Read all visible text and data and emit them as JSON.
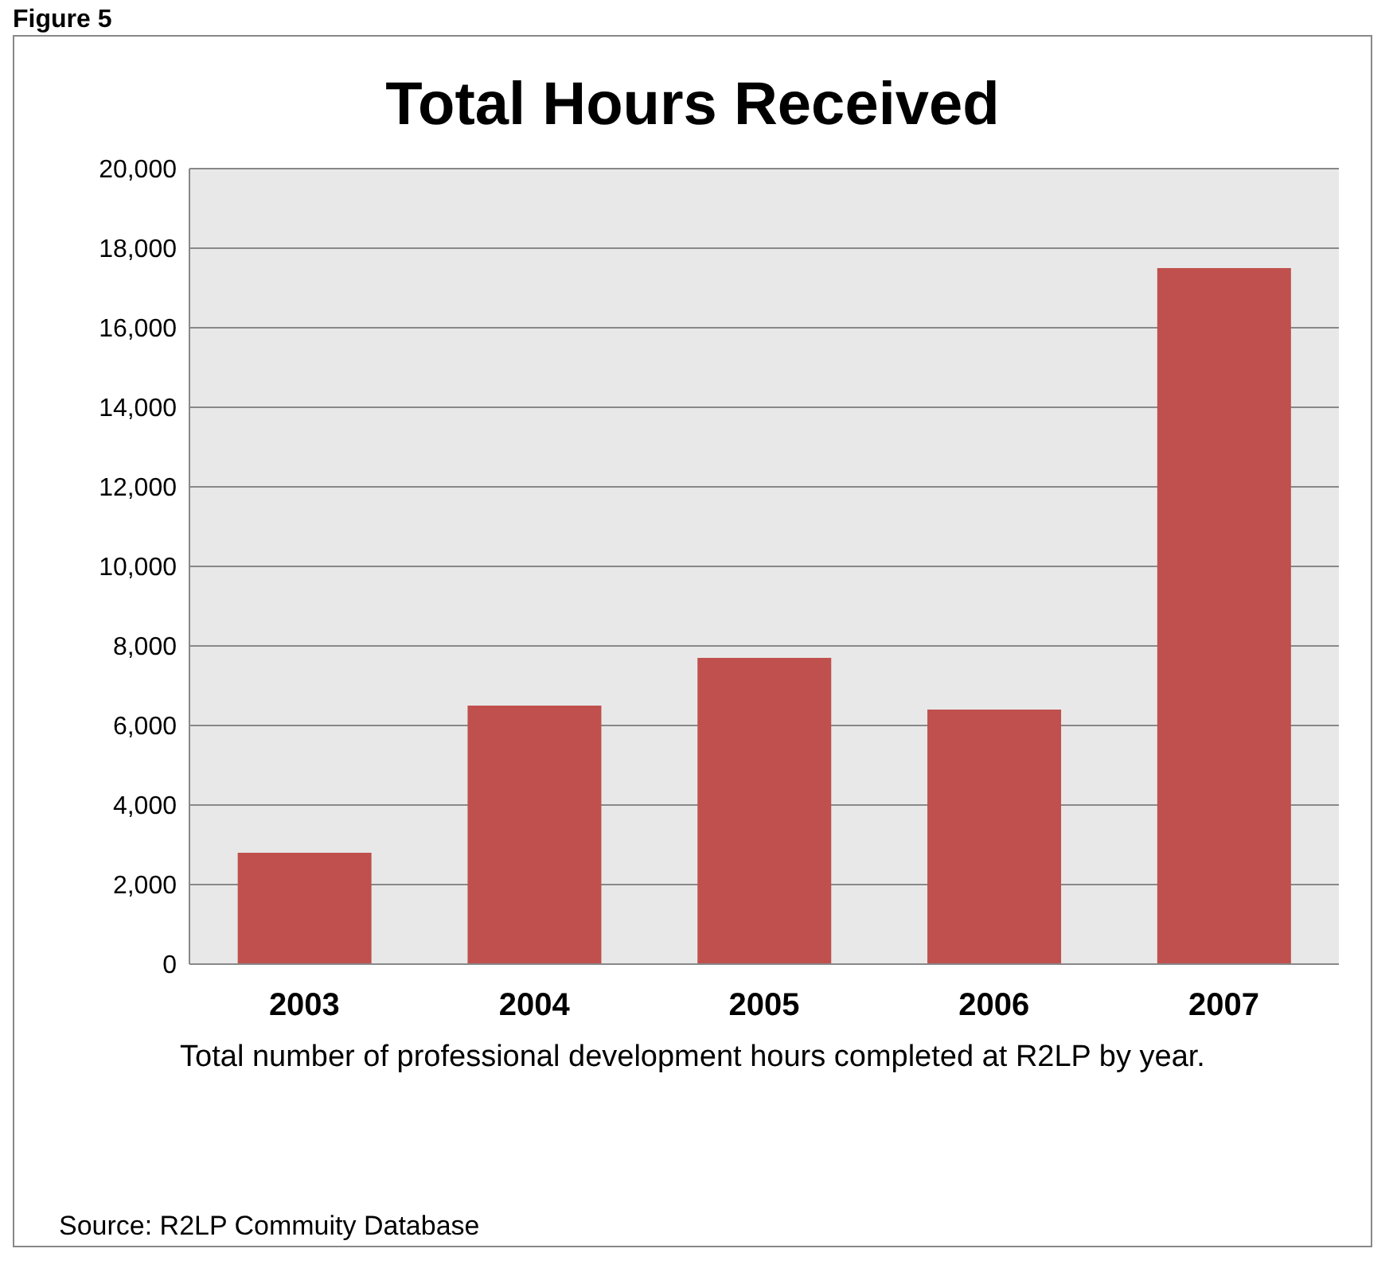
{
  "chart_data": {
    "type": "bar",
    "title": "Total Hours Received",
    "categories": [
      "2003",
      "2004",
      "2005",
      "2006",
      "2007"
    ],
    "values": [
      2800,
      6500,
      7700,
      6400,
      17500
    ],
    "color": "#c0504d",
    "ylim": [
      0,
      20000
    ],
    "yticks": [
      {
        "value": 0,
        "label": "0"
      },
      {
        "value": 2000,
        "label": "2,000"
      },
      {
        "value": 4000,
        "label": "4,000"
      },
      {
        "value": 6000,
        "label": "6,000"
      },
      {
        "value": 8000,
        "label": "8,000"
      },
      {
        "value": 10000,
        "label": "10,000"
      },
      {
        "value": 12000,
        "label": "12,000"
      },
      {
        "value": 14000,
        "label": "14,000"
      },
      {
        "value": 16000,
        "label": "16,000"
      },
      {
        "value": 18000,
        "label": "18,000"
      },
      {
        "value": 20000,
        "label": "20,000"
      }
    ],
    "grid": "y",
    "annotations": [
      "Figure 5",
      "Total number of professional development hours completed at R2LP by year.",
      "Source: R2LP Commuity Database"
    ]
  }
}
